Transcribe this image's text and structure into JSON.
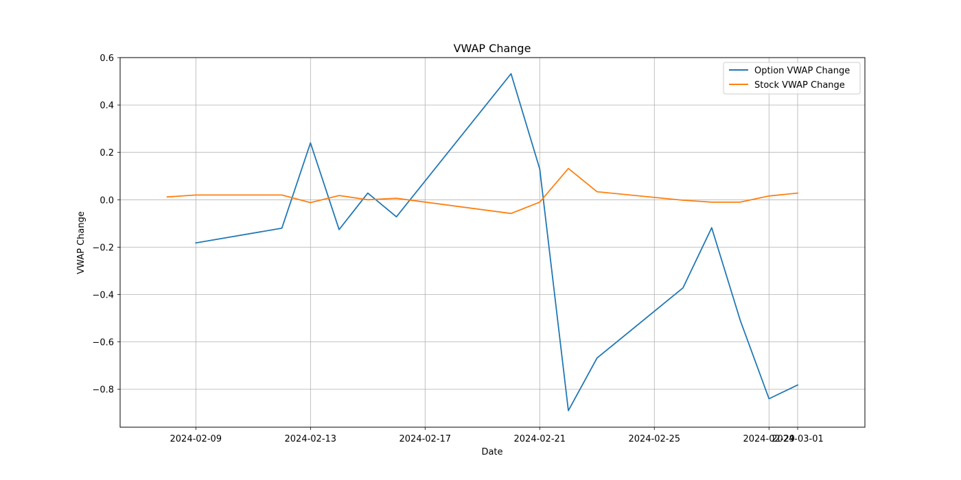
{
  "chart_data": {
    "type": "line",
    "title": "VWAP Change",
    "xlabel": "Date",
    "ylabel": "VWAP Change",
    "x_ticks": [
      "2024-02-09",
      "2024-02-13",
      "2024-02-17",
      "2024-02-21",
      "2024-02-25",
      "2024-02-29",
      "2024-03-01"
    ],
    "y_ticks": [
      "0.6",
      "0.4",
      "0.2",
      "0.0",
      "−0.2",
      "−0.4",
      "−0.6",
      "−0.8"
    ],
    "y_tick_values": [
      0.6,
      0.4,
      0.2,
      0.0,
      -0.2,
      -0.4,
      -0.6,
      -0.8
    ],
    "xlim": [
      "2024-02-06T08:35",
      "2024-03-03T08:20"
    ],
    "ylim": [
      -0.96,
      0.6
    ],
    "grid": true,
    "legend_position": "top-right",
    "series": [
      {
        "name": "Option VWAP Change",
        "color": "#1f77b4",
        "points": [
          {
            "x": "2024-02-09",
            "y": -0.182
          },
          {
            "x": "2024-02-12",
            "y": -0.12
          },
          {
            "x": "2024-02-13",
            "y": 0.24
          },
          {
            "x": "2024-02-14",
            "y": -0.126
          },
          {
            "x": "2024-02-15",
            "y": 0.028
          },
          {
            "x": "2024-02-16",
            "y": -0.072
          },
          {
            "x": "2024-02-20",
            "y": 0.532
          },
          {
            "x": "2024-02-21",
            "y": 0.13
          },
          {
            "x": "2024-02-22",
            "y": -0.89
          },
          {
            "x": "2024-02-23",
            "y": -0.668
          },
          {
            "x": "2024-02-26",
            "y": -0.372
          },
          {
            "x": "2024-02-27",
            "y": -0.118
          },
          {
            "x": "2024-02-28",
            "y": -0.51
          },
          {
            "x": "2024-02-29",
            "y": -0.84
          },
          {
            "x": "2024-03-01",
            "y": -0.782
          }
        ]
      },
      {
        "name": "Stock VWAP Change",
        "color": "#ff7f0e",
        "points": [
          {
            "x": "2024-02-08",
            "y": 0.012
          },
          {
            "x": "2024-02-09",
            "y": 0.02
          },
          {
            "x": "2024-02-12",
            "y": 0.02
          },
          {
            "x": "2024-02-13",
            "y": -0.012
          },
          {
            "x": "2024-02-14",
            "y": 0.018
          },
          {
            "x": "2024-02-15",
            "y": 0.0
          },
          {
            "x": "2024-02-16",
            "y": 0.006
          },
          {
            "x": "2024-02-20",
            "y": -0.058
          },
          {
            "x": "2024-02-21",
            "y": -0.01
          },
          {
            "x": "2024-02-22",
            "y": 0.132
          },
          {
            "x": "2024-02-23",
            "y": 0.034
          },
          {
            "x": "2024-02-26",
            "y": -0.002
          },
          {
            "x": "2024-02-27",
            "y": -0.01
          },
          {
            "x": "2024-02-28",
            "y": -0.01
          },
          {
            "x": "2024-02-29",
            "y": 0.016
          },
          {
            "x": "2024-03-01",
            "y": 0.028
          }
        ]
      }
    ]
  }
}
